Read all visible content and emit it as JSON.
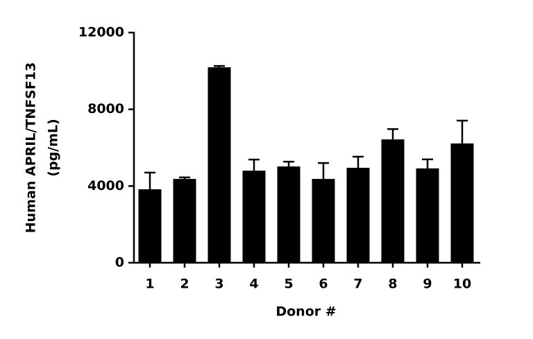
{
  "chart_data": {
    "type": "bar",
    "x_label": "Donor #",
    "y_label": [
      "Human APRIL/TNFSF13",
      "(pg/mL)"
    ],
    "categories": [
      "1",
      "2",
      "3",
      "4",
      "5",
      "6",
      "7",
      "8",
      "9",
      "10"
    ],
    "values": [
      3830,
      4370,
      10190,
      4800,
      5020,
      4370,
      4950,
      6430,
      4920,
      6220
    ],
    "errors": [
      870,
      80,
      70,
      580,
      250,
      830,
      580,
      540,
      470,
      1190
    ],
    "color": "#000000",
    "ylim": [
      0,
      12000
    ],
    "yticks": [
      0,
      4000,
      8000,
      12000
    ],
    "grid": false
  }
}
